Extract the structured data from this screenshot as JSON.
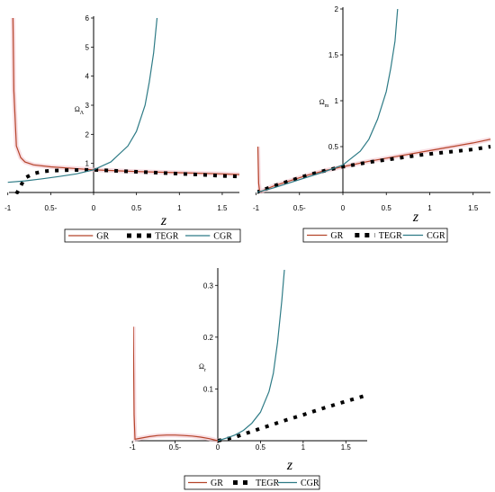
{
  "chart_data": [
    {
      "type": "line",
      "xlabel": "z",
      "ylabel": "Ω_Λ",
      "xlim": [
        -1,
        1.7
      ],
      "ylim": [
        0,
        6
      ],
      "x_ticks": [
        "-1",
        "0.5-",
        "0",
        "0.5",
        "1",
        "1.5"
      ],
      "y_ticks": [
        "1",
        "2",
        "3",
        "4",
        "5",
        "6"
      ],
      "legend": [
        "GR",
        "TEGR",
        "CGR"
      ],
      "legend_position": "bottom",
      "series": [
        {
          "name": "GR",
          "color": "#b5442a",
          "style": "solid",
          "x": [
            -0.94,
            -0.93,
            -0.9,
            -0.85,
            -0.8,
            -0.7,
            -0.5,
            -0.3,
            0,
            0.5,
            1,
            1.5,
            1.7
          ],
          "y": [
            6,
            3.5,
            1.6,
            1.2,
            1.05,
            0.95,
            0.88,
            0.84,
            0.78,
            0.72,
            0.68,
            0.64,
            0.62
          ]
        },
        {
          "name": "TEGR",
          "color": "#000000",
          "style": "dotted",
          "x": [
            -0.9,
            -0.8,
            -0.7,
            -0.6,
            -0.5,
            -0.3,
            0,
            0.3,
            0.6,
            0.9,
            1.2,
            1.5,
            1.7
          ],
          "y": [
            -0.05,
            0.5,
            0.65,
            0.72,
            0.75,
            0.77,
            0.78,
            0.74,
            0.7,
            0.66,
            0.62,
            0.57,
            0.55
          ]
        },
        {
          "name": "CGR",
          "color": "#2e7b86",
          "style": "solid",
          "x": [
            -1,
            -0.8,
            -0.6,
            -0.4,
            -0.2,
            0,
            0.2,
            0.4,
            0.5,
            0.6,
            0.65,
            0.7,
            0.74
          ],
          "y": [
            0.35,
            0.4,
            0.47,
            0.55,
            0.64,
            0.78,
            1.05,
            1.6,
            2.1,
            3.0,
            3.8,
            4.8,
            6
          ]
        }
      ]
    },
    {
      "type": "line",
      "xlabel": "z",
      "ylabel": "Ω_m",
      "xlim": [
        -1,
        1.7
      ],
      "ylim": [
        0,
        2
      ],
      "x_ticks": [
        "-1",
        "0.5-",
        "0",
        "0.5",
        "1",
        "1.5"
      ],
      "y_ticks": [
        "0.5",
        "1",
        "1.5",
        "2"
      ],
      "legend": [
        "GR",
        "TEGR",
        "CGR"
      ],
      "legend_position": "bottom",
      "series": [
        {
          "name": "GR",
          "color": "#b5442a",
          "style": "solid",
          "x": [
            -0.98,
            -0.97,
            -0.96,
            -0.94,
            -0.9,
            -0.8,
            -0.6,
            -0.4,
            -0.2,
            0,
            0.3,
            0.6,
            0.9,
            1.2,
            1.5,
            1.7
          ],
          "y": [
            0.5,
            0.1,
            0.02,
            0.01,
            0.03,
            0.07,
            0.13,
            0.19,
            0.24,
            0.28,
            0.34,
            0.39,
            0.44,
            0.49,
            0.54,
            0.58
          ]
        },
        {
          "name": "TEGR",
          "color": "#000000",
          "style": "dotted",
          "x": [
            -1,
            -0.8,
            -0.6,
            -0.4,
            -0.2,
            0,
            0.3,
            0.6,
            0.9,
            1.2,
            1.5,
            1.7
          ],
          "y": [
            0,
            0.07,
            0.13,
            0.19,
            0.24,
            0.28,
            0.33,
            0.37,
            0.41,
            0.44,
            0.47,
            0.5
          ]
        },
        {
          "name": "CGR",
          "color": "#2e7b86",
          "style": "solid",
          "x": [
            -1,
            -0.8,
            -0.6,
            -0.4,
            -0.2,
            0,
            0.2,
            0.3,
            0.4,
            0.5,
            0.55,
            0.6,
            0.63
          ],
          "y": [
            0,
            0.05,
            0.11,
            0.17,
            0.23,
            0.3,
            0.45,
            0.58,
            0.8,
            1.1,
            1.35,
            1.65,
            2
          ]
        }
      ]
    },
    {
      "type": "line",
      "xlabel": "z",
      "ylabel": "Ω_r",
      "xlim": [
        -1,
        1.75
      ],
      "ylim": [
        0,
        0.33
      ],
      "x_ticks": [
        "-1",
        "0.5-",
        "0",
        "0.5",
        "1",
        "1.5"
      ],
      "y_ticks": [
        "0.1",
        "0.2",
        "0.3"
      ],
      "legend": [
        "GR",
        "TEGR",
        "CGR"
      ],
      "legend_position": "bottom",
      "series": [
        {
          "name": "GR",
          "color": "#b5442a",
          "style": "solid",
          "x": [
            -0.99,
            -0.98,
            -0.97,
            -0.9,
            -0.8,
            -0.7,
            -0.6,
            -0.5,
            -0.4,
            -0.3,
            -0.2,
            -0.1,
            0
          ],
          "y": [
            0.22,
            0.05,
            0.003,
            0.005,
            0.008,
            0.01,
            0.011,
            0.011,
            0.01,
            0.009,
            0.007,
            0.004,
            0
          ]
        },
        {
          "name": "TEGR",
          "color": "#000000",
          "style": "dotted",
          "x": [
            0,
            0.2,
            0.4,
            0.6,
            0.8,
            1.0,
            1.2,
            1.4,
            1.6,
            1.75
          ],
          "y": [
            0,
            0.007,
            0.018,
            0.029,
            0.04,
            0.05,
            0.061,
            0.071,
            0.081,
            0.088
          ]
        },
        {
          "name": "CGR",
          "color": "#2e7b86",
          "style": "solid",
          "x": [
            0,
            0.1,
            0.2,
            0.3,
            0.4,
            0.5,
            0.6,
            0.65,
            0.7,
            0.75,
            0.78
          ],
          "y": [
            0,
            0.005,
            0.011,
            0.02,
            0.034,
            0.055,
            0.095,
            0.13,
            0.19,
            0.27,
            0.33
          ]
        }
      ]
    }
  ]
}
